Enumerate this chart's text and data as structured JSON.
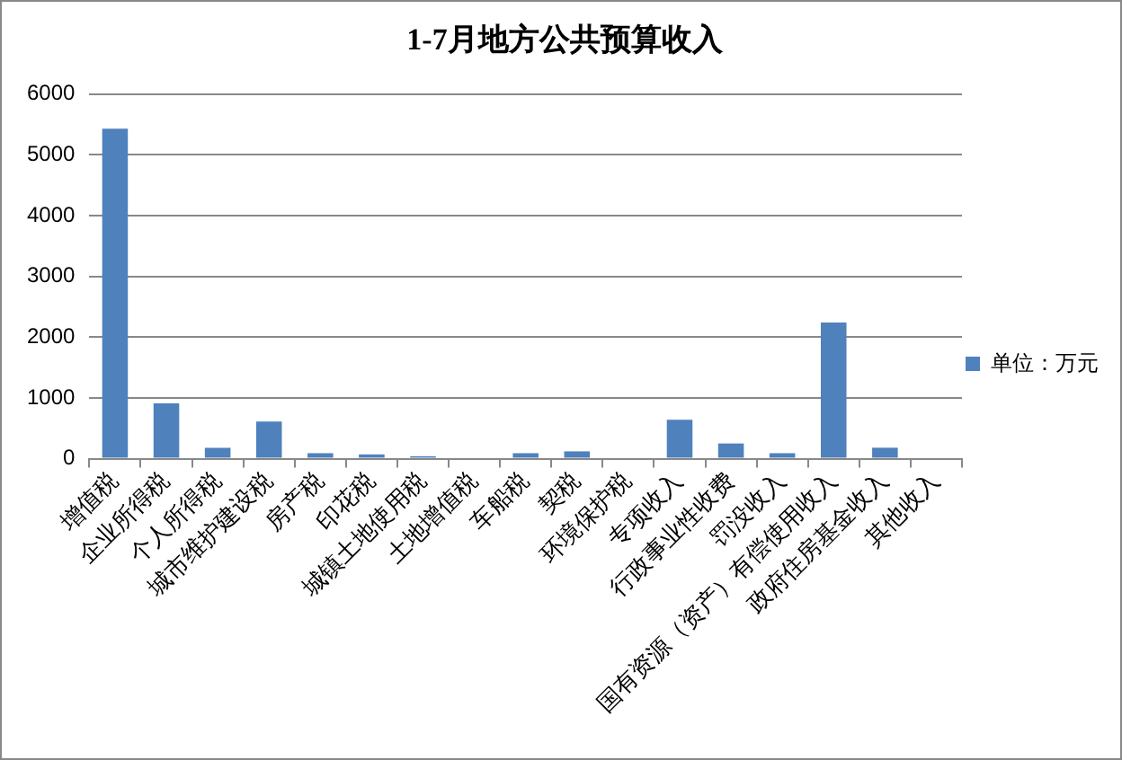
{
  "chart_data": {
    "type": "bar",
    "title": "1-7月地方公共预算收入",
    "categories": [
      "增值税",
      "企业所得税",
      "个人所得税",
      "城市维护建设税",
      "房产税",
      "印花税",
      "城镇土地使用税",
      "土地增值税",
      "车船税",
      "契税",
      "环境保护税",
      "专项收入",
      "行政事业性收费",
      "罚没收入",
      "国有资源（资产）有偿使用收入",
      "政府住房基金收入",
      "其他收入"
    ],
    "series": [
      {
        "name": "单位：万元",
        "color": "#4f81bd",
        "values": [
          5430,
          910,
          180,
          610,
          90,
          70,
          40,
          0,
          90,
          120,
          0,
          640,
          250,
          90,
          2240,
          180,
          0
        ]
      }
    ],
    "ylim": [
      0,
      6000
    ],
    "yticks": [
      0,
      1000,
      2000,
      3000,
      4000,
      5000,
      6000
    ],
    "grid": "y",
    "legend": "right"
  }
}
